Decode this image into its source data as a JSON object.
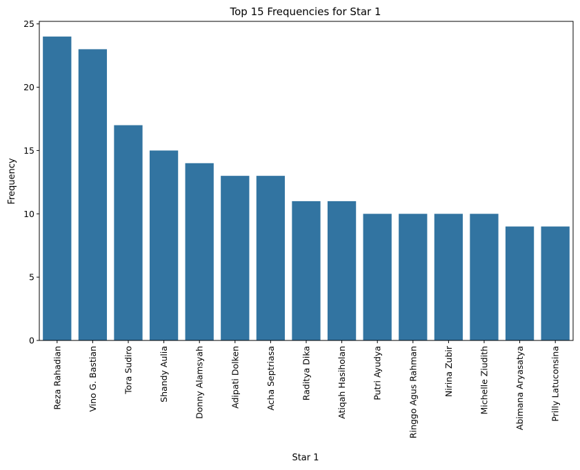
{
  "chart_data": {
    "type": "bar",
    "title": "Top 15 Frequencies for Star 1",
    "xlabel": "Star 1",
    "ylabel": "Frequency",
    "categories": [
      "Reza Rahadian",
      "Vino G. Bastian",
      "Tora Sudiro",
      "Shandy Aulia",
      "Donny Alamsyah",
      "Adipati Dolken",
      "Acha Septriasa",
      "Raditya Dika",
      "Atiqah Hasiholan",
      "Putri Ayudya",
      "Ringgo Agus Rahman",
      "Nirina Zubir",
      "Michelle Ziudith",
      "Abimana Aryasatya",
      "Prilly Latuconsina"
    ],
    "values": [
      24,
      23,
      17,
      15,
      14,
      13,
      13,
      11,
      11,
      10,
      10,
      10,
      10,
      9,
      9
    ],
    "ylim": [
      0,
      25.2
    ],
    "yticks": [
      0,
      5,
      10,
      15,
      20,
      25
    ],
    "bar_color": "#3274a1",
    "grid": false,
    "legend": "none"
  }
}
